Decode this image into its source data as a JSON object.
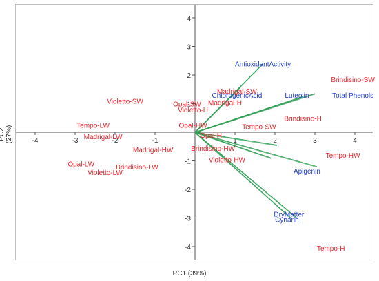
{
  "chart_data": {
    "type": "scatter",
    "subtype": "pca-biplot",
    "title": "",
    "xlabel": "PC1 (39%)",
    "ylabel": "PC2 (27%)",
    "xlim": [
      -5.4,
      5.7
    ],
    "ylim": [
      -4.5,
      4.1
    ],
    "xticks": [
      -4,
      -3,
      -2,
      -1,
      0,
      1,
      2,
      3,
      4
    ],
    "yticks": [
      -4,
      -3,
      -2,
      -1,
      0,
      1,
      2,
      3,
      4
    ],
    "grid": false,
    "legend": "none",
    "colors": {
      "samples": "#e8232a",
      "variables": "#1f3fcf",
      "loadings": "#2e9e55",
      "axis": "#555555",
      "frame": "#bfbfbf"
    },
    "samples": [
      {
        "label": "Brindisino-SW",
        "x": 3.95,
        "y": 1.85
      },
      {
        "label": "Madrigal-SW",
        "x": 1.05,
        "y": 1.45
      },
      {
        "label": "Madrigal-H",
        "x": 0.75,
        "y": 1.05
      },
      {
        "label": "Violetto-SW",
        "x": -1.75,
        "y": 1.1
      },
      {
        "label": "Opal-SW",
        "x": -0.2,
        "y": 1.0
      },
      {
        "label": "Violetto-H",
        "x": -0.05,
        "y": 0.8
      },
      {
        "label": "Brindisino-H",
        "x": 2.7,
        "y": 0.5
      },
      {
        "label": "Tempo-SW",
        "x": 1.6,
        "y": 0.2
      },
      {
        "label": "Tempo-LW",
        "x": -2.55,
        "y": 0.25
      },
      {
        "label": "Opal-HW",
        "x": -0.05,
        "y": 0.25
      },
      {
        "label": "Madrigal-LW",
        "x": -2.3,
        "y": -0.15
      },
      {
        "label": "Opal-H",
        "x": 0.4,
        "y": -0.1
      },
      {
        "label": "Madrigal-HW",
        "x": -1.05,
        "y": -0.6
      },
      {
        "label": "Brindisino-HW",
        "x": 0.45,
        "y": -0.55
      },
      {
        "label": "Tempo-HW",
        "x": 3.7,
        "y": -0.8
      },
      {
        "label": "Violetto-HW",
        "x": 0.8,
        "y": -0.95
      },
      {
        "label": "Opal-LW",
        "x": -2.85,
        "y": -1.1
      },
      {
        "label": "Brindisino-LW",
        "x": -1.45,
        "y": -1.2
      },
      {
        "label": "Violetto-LW",
        "x": -2.25,
        "y": -1.4
      },
      {
        "label": "Tempo-H",
        "x": 3.4,
        "y": -4.05
      }
    ],
    "variables": [
      {
        "label": "AntioxidantActivity",
        "x": 1.7,
        "y": 2.4
      },
      {
        "label": "ChlorogenicAcid",
        "x": 1.05,
        "y": 1.3
      },
      {
        "label": "Luteolin",
        "x": 2.55,
        "y": 1.3
      },
      {
        "label": "Total Phenols",
        "x": 3.95,
        "y": 1.3
      },
      {
        "label": "Apigenin",
        "x": 2.8,
        "y": -1.35
      },
      {
        "label": "DryMatter",
        "x": 2.35,
        "y": -2.85
      },
      {
        "label": "Cynarin",
        "x": 2.3,
        "y": -3.05
      }
    ],
    "loadings": [
      {
        "x": 1.7,
        "y": 2.4
      },
      {
        "x": 1.15,
        "y": 1.6
      },
      {
        "x": 3.0,
        "y": 1.35
      },
      {
        "x": 2.7,
        "y": 1.25
      },
      {
        "x": 3.05,
        "y": -1.2
      },
      {
        "x": 2.55,
        "y": -3.0
      },
      {
        "x": 2.4,
        "y": -3.0
      },
      {
        "x": 2.05,
        "y": -0.45
      },
      {
        "x": 1.9,
        "y": -0.9
      }
    ]
  }
}
